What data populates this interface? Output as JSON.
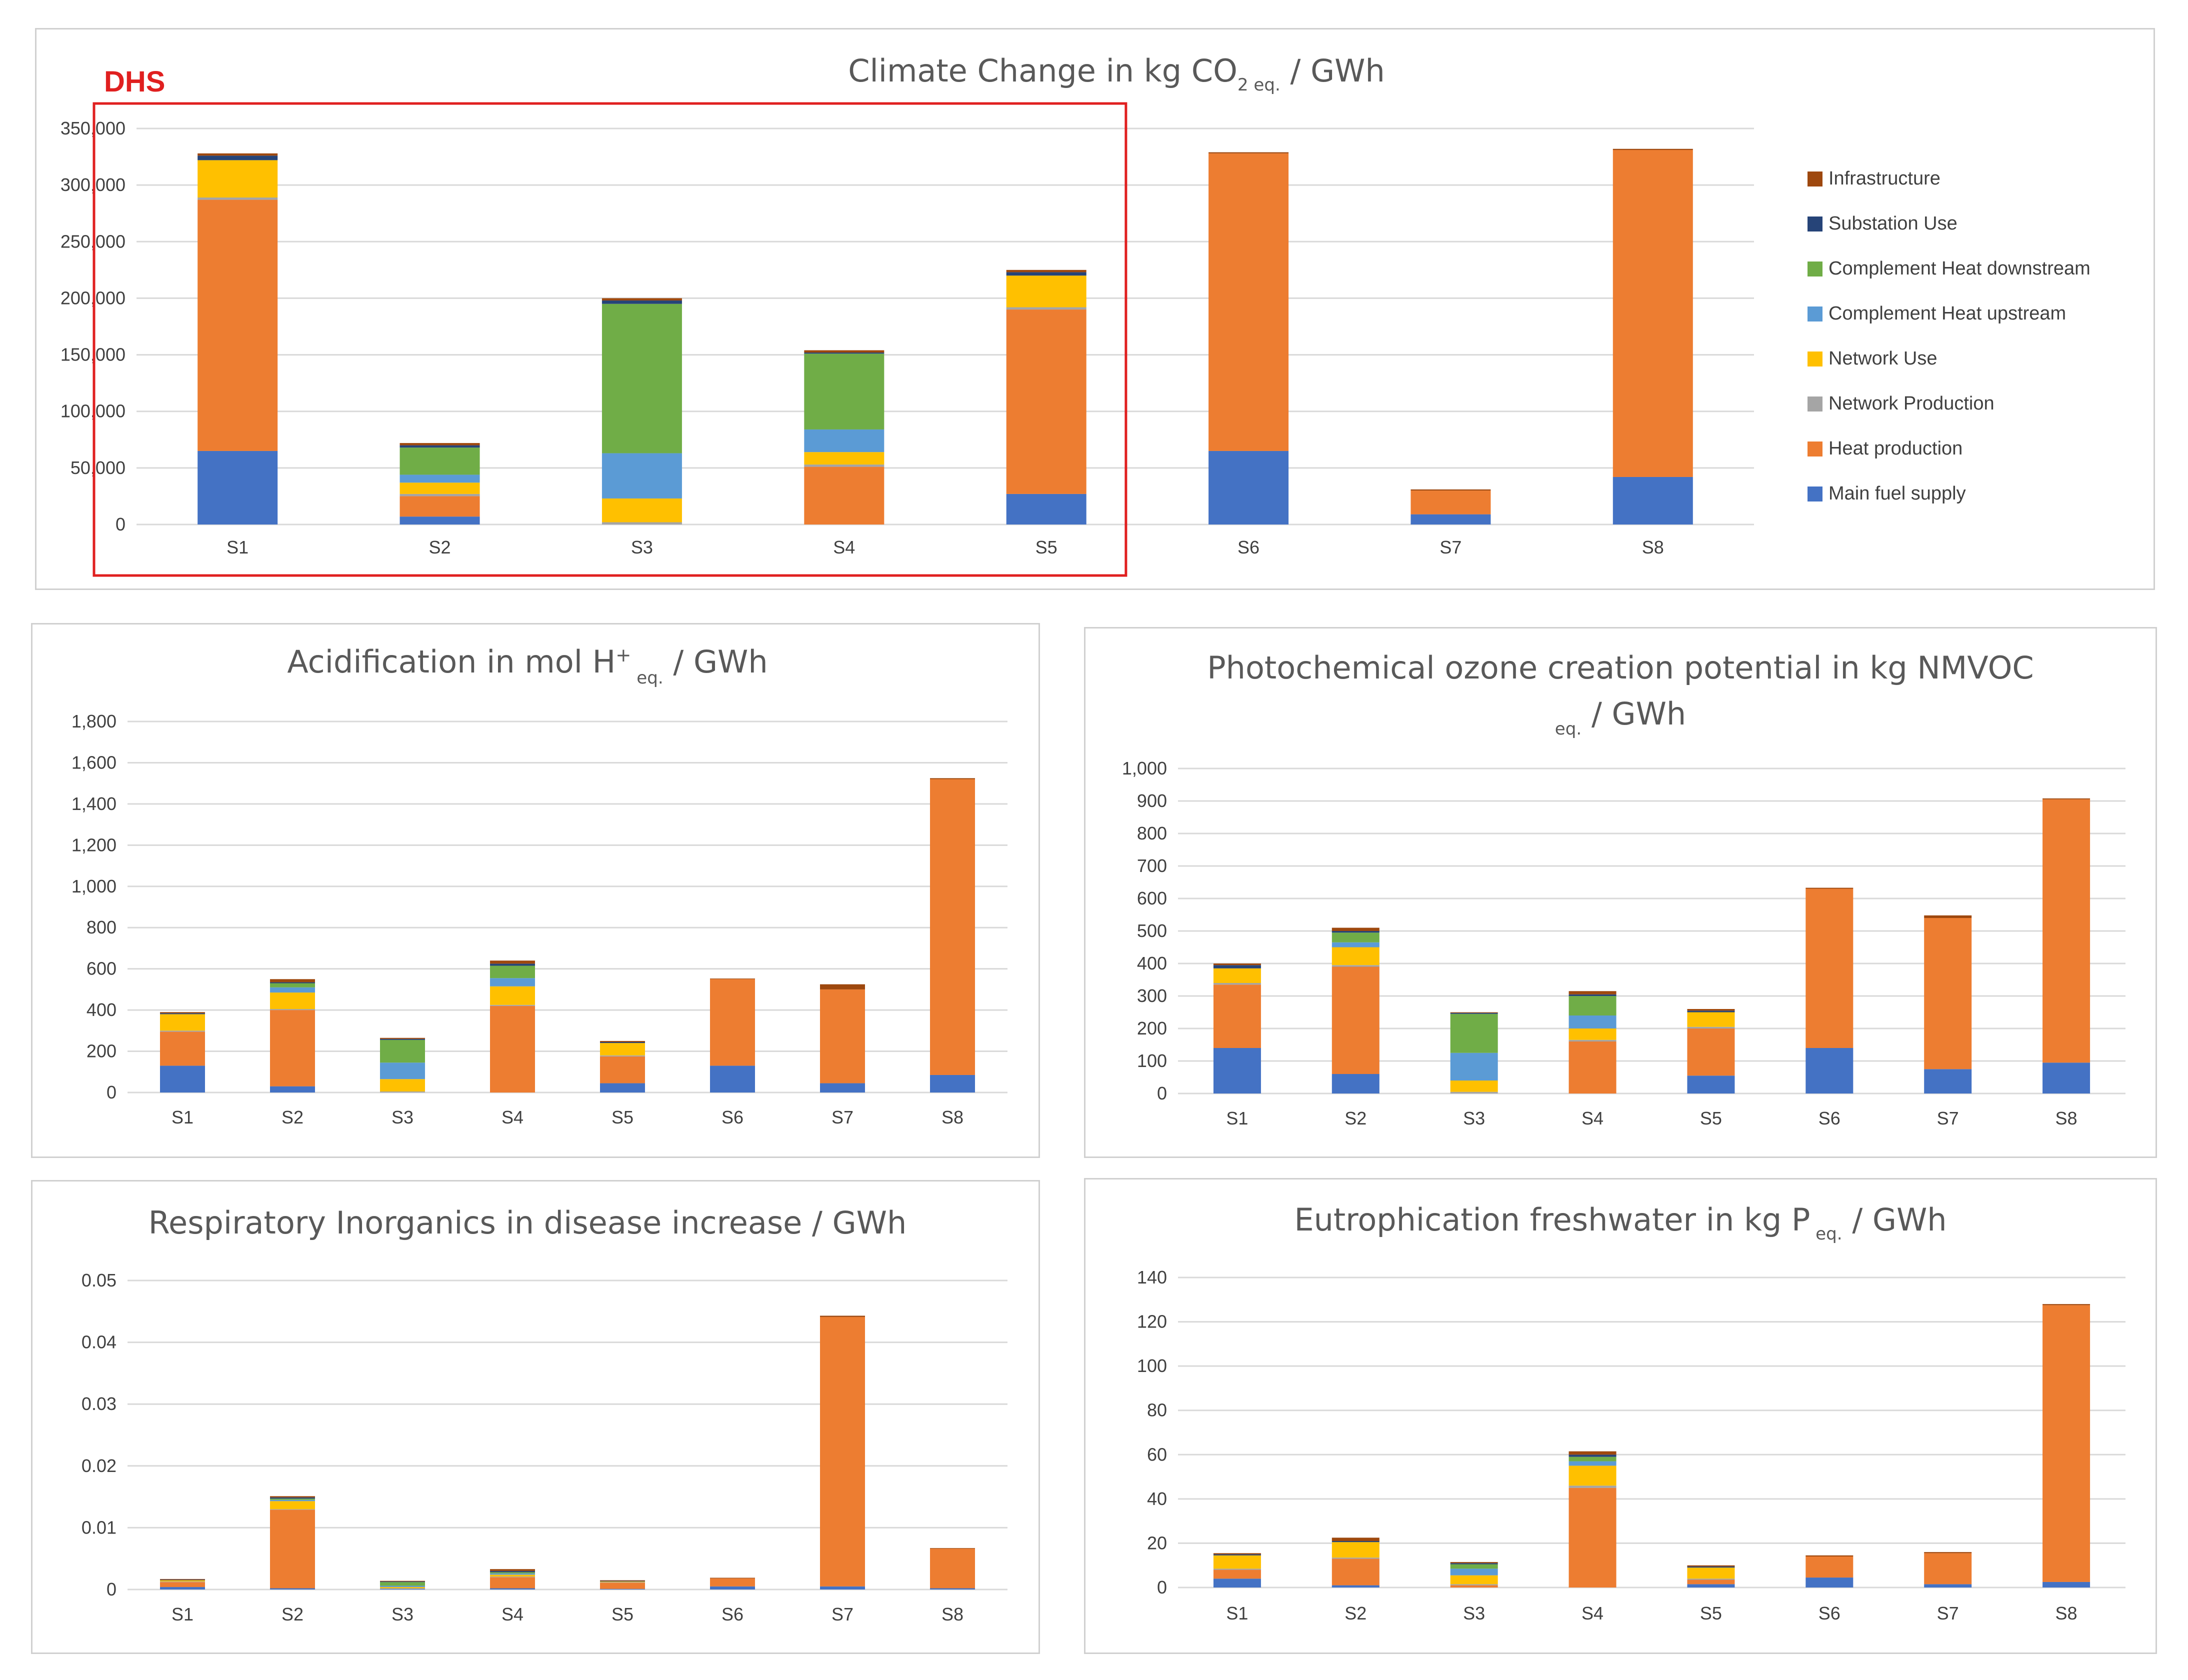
{
  "colors": {
    "Main fuel supply": "#4472C4",
    "Heat production": "#ED7D31",
    "Network Production": "#A5A5A5",
    "Network Use": "#FFC000",
    "Complement Heat upstream": "#5B9BD5",
    "Complement Heat downstream": "#70AD47",
    "Substation Use": "#264478",
    "Infrastructure": "#9E480E",
    "grid": "#d9d9d9",
    "dhs_box": "#e02020"
  },
  "dhs_label": "DHS",
  "legend": [
    "Infrastructure",
    "Substation Use",
    "Complement Heat downstream",
    "Complement Heat upstream",
    "Network Use",
    "Network Production",
    "Heat production",
    "Main fuel supply"
  ],
  "chart_data": [
    {
      "id": "climate",
      "type": "bar",
      "stacked": true,
      "title_parts": {
        "main": "Climate Change in kg CO",
        "sub": "2 eq.",
        "tail": " / GWh"
      },
      "categories": [
        "S1",
        "S2",
        "S3",
        "S4",
        "S5",
        "S6",
        "S7",
        "S8"
      ],
      "ylim": [
        0,
        350000
      ],
      "ticks": [
        "0",
        "50,000",
        "100,000",
        "150,000",
        "200,000",
        "250,000",
        "300,000",
        "350,000"
      ],
      "highlight": {
        "label": "DHS",
        "categories": [
          "S1",
          "S2",
          "S3",
          "S4",
          "S5"
        ]
      },
      "series": [
        {
          "name": "Main fuel supply",
          "values": [
            65000,
            7000,
            0,
            0,
            27000,
            65000,
            9000,
            42000
          ]
        },
        {
          "name": "Heat production",
          "values": [
            222000,
            18000,
            0,
            51000,
            163000,
            263000,
            21000,
            289000
          ]
        },
        {
          "name": "Network Production",
          "values": [
            2000,
            2000,
            2000,
            2000,
            2000,
            0,
            0,
            0
          ]
        },
        {
          "name": "Network Use",
          "values": [
            33000,
            10000,
            21000,
            11000,
            28000,
            0,
            0,
            0
          ]
        },
        {
          "name": "Complement Heat upstream",
          "values": [
            0,
            7000,
            40000,
            20000,
            0,
            0,
            0,
            0
          ]
        },
        {
          "name": "Complement Heat downstream",
          "values": [
            0,
            24000,
            132000,
            67000,
            0,
            0,
            0,
            0
          ]
        },
        {
          "name": "Substation Use",
          "values": [
            4000,
            2000,
            3000,
            1000,
            3000,
            0,
            0,
            0
          ]
        },
        {
          "name": "Infrastructure",
          "values": [
            2000,
            2000,
            2000,
            2000,
            2000,
            1000,
            1000,
            1000
          ]
        }
      ]
    },
    {
      "id": "acid",
      "type": "bar",
      "stacked": true,
      "title_parts": {
        "main": "Acidification in mol H",
        "sup": "+",
        "sub": " eq.",
        "tail": " / GWh"
      },
      "categories": [
        "S1",
        "S2",
        "S3",
        "S4",
        "S5",
        "S6",
        "S7",
        "S8"
      ],
      "ylim": [
        0,
        1800
      ],
      "ticks": [
        "0",
        "200",
        "400",
        "600",
        "800",
        "1,000",
        "1,200",
        "1,400",
        "1,600",
        "1,800"
      ],
      "series": [
        {
          "name": "Main fuel supply",
          "values": [
            130,
            30,
            0,
            0,
            45,
            130,
            45,
            85
          ]
        },
        {
          "name": "Heat production",
          "values": [
            165,
            370,
            0,
            420,
            130,
            420,
            455,
            1435
          ]
        },
        {
          "name": "Network Production",
          "values": [
            5,
            5,
            5,
            5,
            5,
            0,
            0,
            0
          ]
        },
        {
          "name": "Network Use",
          "values": [
            80,
            80,
            60,
            90,
            60,
            0,
            0,
            0
          ]
        },
        {
          "name": "Complement Heat upstream",
          "values": [
            0,
            25,
            80,
            40,
            0,
            0,
            0,
            0
          ]
        },
        {
          "name": "Complement Heat downstream",
          "values": [
            0,
            20,
            110,
            60,
            0,
            0,
            0,
            0
          ]
        },
        {
          "name": "Substation Use",
          "values": [
            5,
            5,
            5,
            10,
            5,
            0,
            0,
            0
          ]
        },
        {
          "name": "Infrastructure",
          "values": [
            5,
            15,
            5,
            15,
            5,
            3,
            25,
            5
          ]
        }
      ]
    },
    {
      "id": "pocp",
      "type": "bar",
      "stacked": true,
      "title_parts": {
        "line1": "Photochemical ozone creation potential in kg NMVOC",
        "sub": "eq.",
        "tail": " / GWh"
      },
      "categories": [
        "S1",
        "S2",
        "S3",
        "S4",
        "S5",
        "S6",
        "S7",
        "S8"
      ],
      "ylim": [
        0,
        1000
      ],
      "ticks": [
        "0",
        "100",
        "200",
        "300",
        "400",
        "500",
        "600",
        "700",
        "800",
        "900",
        "1,000"
      ],
      "series": [
        {
          "name": "Main fuel supply",
          "values": [
            140,
            60,
            0,
            0,
            55,
            140,
            75,
            95
          ]
        },
        {
          "name": "Heat production",
          "values": [
            195,
            330,
            0,
            160,
            145,
            490,
            465,
            810
          ]
        },
        {
          "name": "Network Production",
          "values": [
            5,
            5,
            5,
            5,
            5,
            0,
            0,
            0
          ]
        },
        {
          "name": "Network Use",
          "values": [
            45,
            55,
            35,
            35,
            45,
            0,
            0,
            0
          ]
        },
        {
          "name": "Complement Heat upstream",
          "values": [
            0,
            15,
            85,
            40,
            0,
            0,
            0,
            0
          ]
        },
        {
          "name": "Complement Heat downstream",
          "values": [
            0,
            30,
            120,
            60,
            0,
            0,
            0,
            0
          ]
        },
        {
          "name": "Substation Use",
          "values": [
            10,
            5,
            3,
            5,
            5,
            0,
            0,
            0
          ]
        },
        {
          "name": "Infrastructure",
          "values": [
            5,
            10,
            2,
            10,
            5,
            3,
            8,
            3
          ]
        }
      ]
    },
    {
      "id": "resp",
      "type": "bar",
      "stacked": true,
      "title_parts": {
        "main": "Respiratory Inorganics in disease increase / GWh"
      },
      "categories": [
        "S1",
        "S2",
        "S3",
        "S4",
        "S5",
        "S6",
        "S7",
        "S8"
      ],
      "ylim": [
        0,
        0.05
      ],
      "ticks": [
        "0",
        "0.01",
        "0.02",
        "0.03",
        "0.04",
        "0.05"
      ],
      "series": [
        {
          "name": "Main fuel supply",
          "values": [
            0.0004,
            0.0002,
            0.0001,
            0.0002,
            0.0001,
            0.0005,
            0.0005,
            0.0002
          ]
        },
        {
          "name": "Heat production",
          "values": [
            0.0008,
            0.0127,
            0,
            0.0018,
            0.001,
            0.0013,
            0.0436,
            0.0064
          ]
        },
        {
          "name": "Network Production",
          "values": [
            0.0001,
            0.0001,
            0.0001,
            0.0001,
            0.0001,
            0,
            0,
            0
          ]
        },
        {
          "name": "Network Use",
          "values": [
            0.0002,
            0.0013,
            0.0002,
            0.0003,
            0.0001,
            0,
            0,
            0
          ]
        },
        {
          "name": "Complement Heat upstream",
          "values": [
            0,
            0.0002,
            0.0002,
            0.0002,
            0,
            0,
            0,
            0
          ]
        },
        {
          "name": "Complement Heat downstream",
          "values": [
            0,
            0.0002,
            0.0006,
            0.0002,
            0,
            0,
            0,
            0
          ]
        },
        {
          "name": "Substation Use",
          "values": [
            0.0001,
            0.0002,
            0.0001,
            0.0002,
            0.0001,
            0,
            0,
            0
          ]
        },
        {
          "name": "Infrastructure",
          "values": [
            0.0001,
            0.0002,
            0.0001,
            0.0003,
            0.0001,
            0.0001,
            0.0002,
            0.0001
          ]
        }
      ]
    },
    {
      "id": "eutro",
      "type": "bar",
      "stacked": true,
      "title_parts": {
        "main": "Eutrophication freshwater in kg P",
        "sub": " eq.",
        "tail": " / GWh"
      },
      "categories": [
        "S1",
        "S2",
        "S3",
        "S4",
        "S5",
        "S6",
        "S7",
        "S8"
      ],
      "ylim": [
        0,
        140
      ],
      "ticks": [
        "0",
        "20",
        "40",
        "60",
        "80",
        "100",
        "120",
        "140"
      ],
      "series": [
        {
          "name": "Main fuel supply",
          "values": [
            4,
            1,
            0,
            0,
            1.5,
            4.5,
            1.5,
            2.5
          ]
        },
        {
          "name": "Heat production",
          "values": [
            4,
            12,
            1,
            45,
            2,
            9.5,
            14,
            125
          ]
        },
        {
          "name": "Network Production",
          "values": [
            0.5,
            0.5,
            0.5,
            1,
            0.5,
            0,
            0,
            0
          ]
        },
        {
          "name": "Network Use",
          "values": [
            6,
            7,
            4,
            9,
            5,
            0,
            0,
            0
          ]
        },
        {
          "name": "Complement Heat upstream",
          "values": [
            0,
            0,
            3,
            2,
            0,
            0,
            0,
            0
          ]
        },
        {
          "name": "Complement Heat downstream",
          "values": [
            0,
            0,
            2,
            2,
            0,
            0,
            0,
            0
          ]
        },
        {
          "name": "Substation Use",
          "values": [
            0.5,
            0.5,
            0.5,
            1,
            0.5,
            0,
            0,
            0
          ]
        },
        {
          "name": "Infrastructure",
          "values": [
            0.5,
            1.5,
            0.5,
            1.5,
            0.5,
            0.5,
            0.5,
            0.5
          ]
        }
      ]
    }
  ]
}
